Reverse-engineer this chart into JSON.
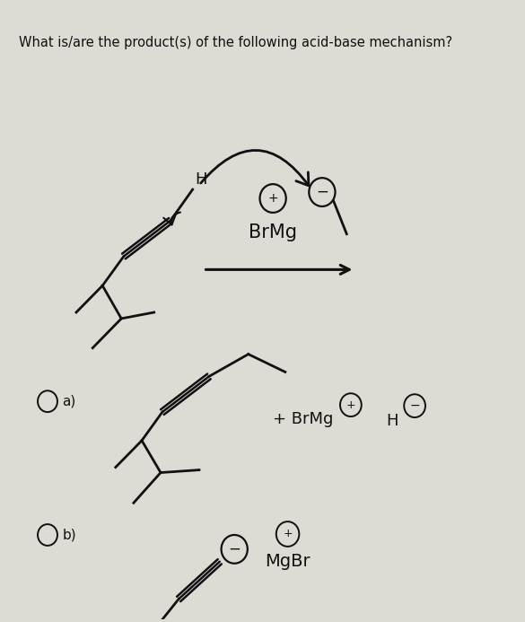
{
  "title": "What is/are the product(s) of the following acid-base mechanism?",
  "bg_color": "#dedad4",
  "line_color": "#111111",
  "title_fontsize": 10.5,
  "option_a_label": "a)",
  "option_b_label": "b)"
}
